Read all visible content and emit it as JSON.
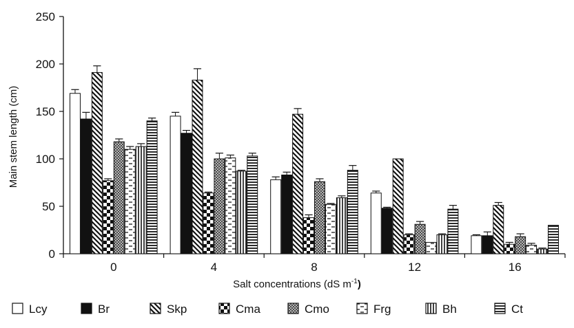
{
  "chart_data": {
    "type": "bar",
    "title": "",
    "xlabel": "Salt concentrations (dS m",
    "xlabel_sup": "-1",
    "xlabel_end": ")",
    "ylabel": "Main stem length (cm)",
    "ylim": [
      0,
      250
    ],
    "yticks": [
      "0",
      "50",
      "100",
      "150",
      "200",
      "250"
    ],
    "grid": false,
    "legend_position": "bottom",
    "categories": [
      "0",
      "4",
      "8",
      "12",
      "16"
    ],
    "series": [
      {
        "name": "Lcy",
        "pattern": "white",
        "values": [
          169,
          145,
          78,
          64,
          19
        ],
        "errors": [
          4,
          4,
          3,
          2,
          1
        ]
      },
      {
        "name": "Br",
        "pattern": "black",
        "values": [
          142,
          127,
          83,
          48,
          19
        ],
        "errors": [
          7,
          3,
          3,
          1,
          4
        ]
      },
      {
        "name": "Skp",
        "pattern": "diag",
        "values": [
          191,
          183,
          147,
          100,
          51
        ],
        "errors": [
          7,
          12,
          6,
          0,
          3
        ]
      },
      {
        "name": "Cma",
        "pattern": "checker",
        "values": [
          77,
          64,
          38,
          20,
          10
        ],
        "errors": [
          2,
          1,
          3,
          1,
          2
        ]
      },
      {
        "name": "Cmo",
        "pattern": "crosshatch",
        "values": [
          118,
          100,
          76,
          31,
          18
        ],
        "errors": [
          3,
          6,
          3,
          3,
          3
        ]
      },
      {
        "name": "Frg",
        "pattern": "dashes",
        "values": [
          110,
          101,
          52,
          12,
          9
        ],
        "errors": [
          3,
          3,
          1,
          0,
          2
        ]
      },
      {
        "name": "Bh",
        "pattern": "vlines",
        "values": [
          113,
          87,
          59,
          20,
          5
        ],
        "errors": [
          3,
          1,
          2,
          1,
          1
        ]
      },
      {
        "name": "Ct",
        "pattern": "hlines",
        "values": [
          140,
          103,
          88,
          47,
          30
        ],
        "errors": [
          3,
          3,
          5,
          4,
          0
        ]
      }
    ],
    "colors": {
      "ink": "#111111",
      "paper": "#ffffff"
    }
  }
}
